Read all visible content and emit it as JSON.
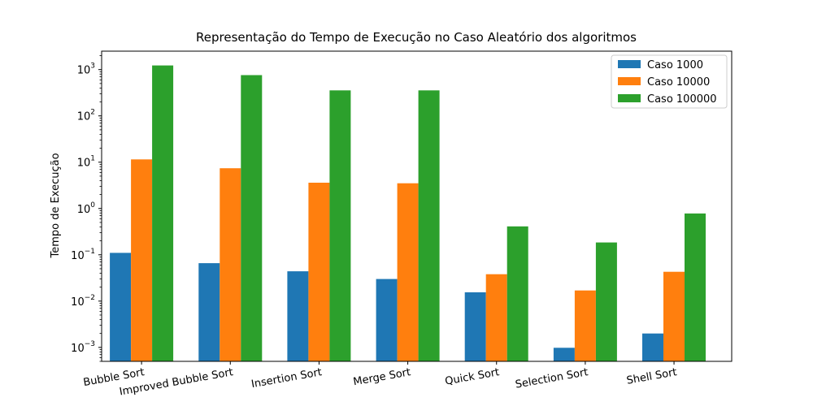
{
  "chart_data": {
    "type": "bar",
    "scale": "log",
    "title": "Representação do Tempo de Execução no Caso Aleatório dos algoritmos",
    "xlabel": "",
    "ylabel": "Tempo de Execução",
    "ylim": [
      0.0005,
      2500
    ],
    "yticks": [
      {
        "base": "10",
        "exp": "−3",
        "value": 0.001
      },
      {
        "base": "10",
        "exp": "−2",
        "value": 0.01
      },
      {
        "base": "10",
        "exp": "−1",
        "value": 0.1
      },
      {
        "base": "10",
        "exp": "0",
        "value": 1
      },
      {
        "base": "10",
        "exp": "1",
        "value": 10
      },
      {
        "base": "10",
        "exp": "2",
        "value": 100
      },
      {
        "base": "10",
        "exp": "3",
        "value": 1000
      }
    ],
    "categories": [
      "Bubble Sort",
      "Improved Bubble Sort",
      "Insertion Sort",
      "Merge Sort",
      "Quick Sort",
      "Selection Sort",
      "Shell Sort"
    ],
    "series": [
      {
        "name": "Caso 1000",
        "color": "#1f77b4",
        "values": [
          0.11,
          0.066,
          0.044,
          0.03,
          0.0155,
          0.00098,
          0.002
        ]
      },
      {
        "name": "Caso 10000",
        "color": "#ff7f0e",
        "values": [
          11.5,
          7.4,
          3.6,
          3.5,
          0.038,
          0.017,
          0.043
        ]
      },
      {
        "name": "Caso 100000",
        "color": "#2ca02c",
        "values": [
          1230,
          760,
          355,
          355,
          0.41,
          0.185,
          0.78
        ]
      }
    ],
    "grid": false,
    "legend": "top-right"
  }
}
